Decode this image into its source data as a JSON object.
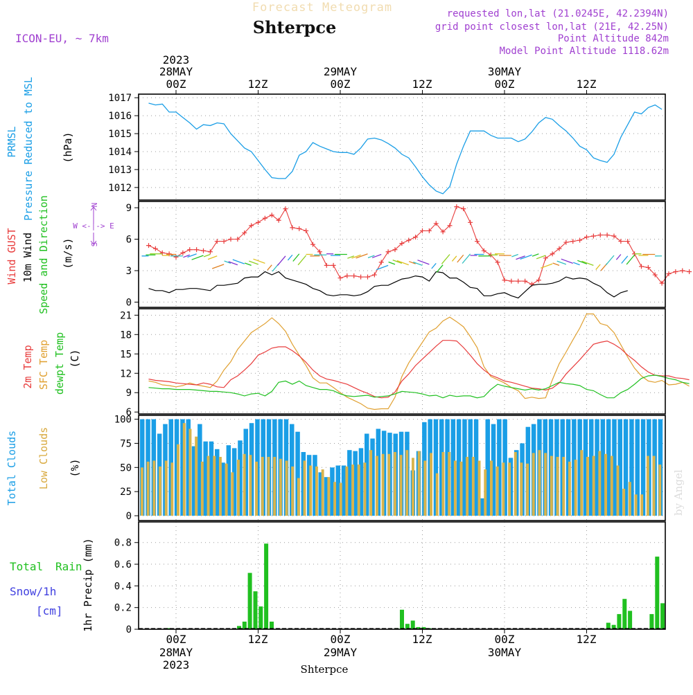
{
  "header": {
    "title": "Shterpce",
    "faded_title": "Forecast Meteogram",
    "model": "ICON-EU, ~ 7km",
    "requested": "requested lon,lat (21.0245E, 42.2394N)",
    "gridpoint": "grid point closest lon,lat (21E, 42.25N)",
    "point_alt": "Point Altitude 842m",
    "model_alt": "Model Point Altitude 1118.62m",
    "watermark": "by Angel",
    "bottom_label": "Shterpce"
  },
  "colors": {
    "pressure": "#1a9ee6",
    "gust": "#e83c3c",
    "wind": "#000000",
    "temp2m": "#e83c3c",
    "sfc": "#e0a030",
    "dewpt": "#20c020",
    "total_clouds": "#1a9ee6",
    "low_clouds": "#d8b44c",
    "rain": "#20c020",
    "snow": "#4040e0",
    "purple": "#a040d0"
  },
  "time_axis": {
    "top_year": "2023",
    "top_dates": [
      "28MAY",
      "29MAY",
      "30MAY"
    ],
    "hours": [
      "00Z",
      "12Z",
      "00Z",
      "12Z",
      "00Z",
      "12Z"
    ],
    "bottom_dates": [
      "28MAY",
      "29MAY",
      "30MAY"
    ],
    "bottom_year": "2023"
  },
  "panel_labels": {
    "pressure": [
      "PRMSL",
      "Pressure Reduced to MSL",
      "(hPa)"
    ],
    "wind": [
      "Wind GUST",
      "10m Wind",
      "Speed and Direction",
      "(m/s)"
    ],
    "compass": [
      "N",
      "W <-|-> E",
      "S"
    ],
    "temp": [
      "2m Temp",
      "SFC Temp",
      "dewpt Temp",
      "(C)"
    ],
    "clouds": [
      "Total Clouds",
      "Low Clouds",
      "(%)"
    ],
    "precip": [
      "Total",
      "Rain",
      "Snow/1h",
      "[cm]",
      "1hr Precip (mm)"
    ]
  },
  "chart_data": [
    {
      "type": "line",
      "name": "PRMSL Pressure Reduced to MSL",
      "ylabel": "(hPa)",
      "ylim": [
        1011.3,
        1017.2
      ],
      "yticks": [
        1012,
        1013,
        1014,
        1015,
        1016,
        1017
      ],
      "x_hours_from_00Z_28MAY": {
        "start": -4,
        "step": 1
      },
      "series": [
        {
          "name": "PRMSL",
          "values": [
            1016.7,
            1016.6,
            1016.65,
            1016.2,
            1016.2,
            1015.9,
            1015.6,
            1015.25,
            1015.5,
            1015.45,
            1015.6,
            1015.55,
            1015.0,
            1014.6,
            1014.2,
            1014.0,
            1013.5,
            1013.0,
            1012.55,
            1012.5,
            1012.5,
            1012.9,
            1013.8,
            1014.0,
            1014.5,
            1014.3,
            1014.15,
            1014.0,
            1013.95,
            1013.95,
            1013.85,
            1014.2,
            1014.7,
            1014.75,
            1014.65,
            1014.45,
            1014.2,
            1013.85,
            1013.65,
            1013.15,
            1012.6,
            1012.15,
            1011.8,
            1011.65,
            1012.05,
            1013.3,
            1014.3,
            1015.15,
            1015.15,
            1015.15,
            1014.9,
            1014.75,
            1014.75,
            1014.75,
            1014.55,
            1014.7,
            1015.1,
            1015.6,
            1015.9,
            1015.8,
            1015.45,
            1015.15,
            1014.75,
            1014.3,
            1014.1,
            1013.65,
            1013.5,
            1013.4,
            1013.85,
            1014.8,
            1015.5,
            1016.2,
            1016.1,
            1016.45,
            1016.6,
            1016.35
          ]
        }
      ]
    },
    {
      "type": "line",
      "name": "Wind GUST / 10m Wind Speed and Direction",
      "ylabel": "(m/s)",
      "ylim": [
        -0.5,
        9.6
      ],
      "yticks": [
        0,
        3,
        6,
        9
      ],
      "x_hours_from_00Z_28MAY": {
        "start": -4,
        "step": 1
      },
      "series": [
        {
          "name": "Wind GUST",
          "values": [
            5.4,
            5.1,
            4.7,
            4.6,
            4.3,
            4.7,
            5.0,
            5.0,
            4.9,
            4.8,
            5.8,
            5.8,
            6.0,
            6.0,
            6.6,
            7.3,
            7.6,
            8.0,
            8.3,
            7.8,
            8.9,
            7.1,
            7.0,
            6.8,
            5.5,
            4.8,
            3.5,
            3.5,
            2.3,
            2.5,
            2.5,
            2.4,
            2.4,
            2.6,
            3.8,
            4.8,
            5.0,
            5.6,
            5.9,
            6.2,
            6.8,
            6.8,
            7.5,
            6.7,
            7.3,
            9.1,
            8.9,
            7.6,
            5.8,
            4.9,
            4.5,
            3.8,
            2.1,
            2.0,
            2.0,
            2.0,
            1.7,
            2.1,
            4.2,
            4.6,
            5.1,
            5.7,
            5.8,
            5.9,
            6.2,
            6.3,
            6.4,
            6.4,
            6.3,
            5.8,
            5.8,
            4.6,
            3.4,
            3.3,
            2.6,
            1.8,
            2.7,
            2.9,
            3.0,
            2.9
          ]
        },
        {
          "name": "10m Wind",
          "values": [
            1.3,
            1.1,
            1.1,
            0.9,
            1.2,
            1.2,
            1.3,
            1.3,
            1.2,
            1.1,
            1.6,
            1.6,
            1.7,
            1.8,
            2.3,
            2.4,
            2.4,
            2.9,
            2.6,
            2.9,
            2.3,
            2.1,
            1.9,
            1.7,
            1.3,
            1.1,
            0.7,
            0.6,
            0.7,
            0.7,
            0.6,
            0.7,
            1.0,
            1.5,
            1.6,
            1.6,
            1.9,
            2.2,
            2.3,
            2.5,
            2.4,
            2.0,
            2.9,
            2.8,
            2.3,
            2.3,
            1.9,
            1.4,
            1.3,
            0.6,
            0.6,
            0.8,
            0.9,
            0.6,
            0.4,
            1.0,
            1.6,
            1.7,
            1.7,
            1.8,
            2.0,
            2.4,
            2.2,
            2.3,
            2.2,
            1.8,
            1.5,
            0.9,
            0.5,
            0.9,
            1.1
          ]
        }
      ]
    },
    {
      "type": "line",
      "name": "2m Temp / SFC Temp / dewpt Temp",
      "ylabel": "(C)",
      "ylim": [
        5.7,
        22
      ],
      "yticks": [
        6,
        9,
        12,
        15,
        18,
        21
      ],
      "x_hours_from_00Z_28MAY": {
        "start": -4,
        "step": 1
      },
      "series": [
        {
          "name": "2m Temp",
          "values": [
            11.1,
            10.9,
            10.8,
            10.7,
            10.5,
            10.4,
            10.3,
            10.2,
            10.5,
            10.3,
            9.9,
            9.8,
            11.0,
            11.6,
            12.5,
            13.5,
            14.8,
            15.3,
            15.9,
            16.1,
            16.1,
            15.5,
            14.7,
            13.7,
            12.5,
            11.6,
            11.1,
            10.9,
            10.6,
            10.3,
            9.8,
            9.3,
            8.9,
            8.4,
            8.2,
            8.3,
            9.1,
            10.8,
            11.9,
            13.2,
            14.2,
            15.2,
            16.2,
            17.1,
            17.1,
            17.0,
            16.0,
            14.8,
            13.5,
            12.5,
            11.7,
            11.3,
            10.8,
            10.6,
            10.3,
            10.0,
            9.7,
            9.6,
            9.4,
            9.7,
            10.5,
            11.9,
            13.0,
            14.1,
            15.3,
            16.5,
            16.8,
            17.0,
            16.5,
            15.8,
            14.8,
            14.0,
            13.0,
            12.2,
            11.7,
            11.6,
            11.6,
            11.3,
            11.2,
            11.0
          ]
        },
        {
          "name": "SFC Temp",
          "values": [
            10.8,
            10.6,
            10.2,
            10.1,
            9.9,
            10.1,
            10.5,
            10.2,
            10.0,
            9.8,
            10.8,
            12.5,
            13.8,
            15.7,
            17.0,
            18.3,
            19.0,
            19.7,
            20.6,
            19.7,
            18.5,
            16.5,
            14.8,
            13.2,
            11.3,
            10.5,
            10.5,
            9.8,
            9.0,
            8.3,
            7.8,
            7.3,
            6.6,
            6.4,
            6.5,
            6.5,
            8.3,
            11.5,
            13.6,
            15.2,
            16.8,
            18.4,
            19.0,
            20.1,
            20.7,
            20.0,
            19.2,
            17.7,
            16.0,
            13.0,
            11.5,
            11.0,
            10.5,
            9.8,
            9.3,
            8.1,
            8.3,
            8.1,
            8.2,
            11.0,
            13.5,
            15.3,
            17.2,
            19.0,
            21.2,
            21.2,
            19.7,
            19.4,
            18.3,
            16.4,
            14.5,
            12.8,
            11.6,
            10.8,
            10.6,
            10.9,
            10.2,
            10.3,
            10.6,
            10.0
          ]
        },
        {
          "name": "dewpt Temp",
          "values": [
            9.8,
            9.7,
            9.6,
            9.6,
            9.5,
            9.5,
            9.5,
            9.4,
            9.3,
            9.2,
            9.2,
            9.1,
            9.0,
            8.8,
            8.5,
            8.8,
            8.9,
            8.5,
            9.2,
            10.6,
            10.8,
            10.3,
            10.8,
            10.1,
            9.8,
            9.5,
            9.5,
            9.3,
            8.8,
            8.5,
            8.4,
            8.5,
            8.6,
            8.3,
            8.4,
            8.5,
            8.8,
            9.2,
            9.1,
            9.0,
            8.8,
            8.5,
            8.6,
            8.2,
            8.6,
            8.4,
            8.5,
            8.5,
            8.2,
            8.4,
            9.5,
            10.3,
            10.0,
            9.8,
            9.6,
            9.4,
            9.6,
            9.4,
            9.6,
            10.1,
            10.6,
            10.4,
            10.3,
            10.1,
            9.5,
            9.3,
            8.7,
            8.2,
            8.2,
            9.0,
            9.5,
            10.3,
            11.2,
            11.6,
            11.7,
            11.5,
            11.2,
            11.0,
            10.6,
            10.4
          ]
        }
      ]
    },
    {
      "type": "bar",
      "name": "Total Clouds / Low Clouds",
      "ylabel": "(%)",
      "ylim": [
        -5,
        104
      ],
      "yticks": [
        0,
        25,
        50,
        75,
        100
      ],
      "x_hours_from_00Z_28MAY": {
        "start": -4,
        "step": 1
      },
      "series": [
        {
          "name": "Total Clouds",
          "values": [
            100,
            100,
            100,
            85,
            95,
            100,
            100,
            100,
            100,
            72,
            95,
            77,
            77,
            69,
            55,
            73,
            70,
            78,
            90,
            96,
            100,
            100,
            100,
            100,
            100,
            100,
            95,
            87,
            66,
            63,
            63,
            45,
            40,
            50,
            52,
            52,
            68,
            67,
            70,
            85,
            80,
            90,
            88,
            86,
            85,
            87,
            87,
            47,
            67,
            97,
            100,
            100,
            100,
            100,
            100,
            100,
            100,
            100,
            100,
            18,
            100,
            95,
            100,
            100,
            60,
            68,
            75,
            92,
            95,
            100,
            100,
            100,
            100,
            100,
            100,
            100,
            100,
            100,
            100,
            100,
            100,
            100,
            100,
            100,
            100,
            100,
            100,
            100,
            100,
            100,
            100
          ]
        },
        {
          "name": "Low Clouds",
          "values": [
            50,
            56,
            57,
            51,
            57,
            55,
            74,
            96,
            90,
            82,
            56,
            62,
            62,
            61,
            54,
            45,
            58,
            64,
            63,
            56,
            61,
            61,
            61,
            59,
            57,
            51,
            39,
            57,
            52,
            51,
            48,
            40,
            35,
            34,
            51,
            53,
            53,
            55,
            68,
            62,
            64,
            64,
            66,
            63,
            68,
            60,
            67,
            57,
            65,
            44,
            66,
            66,
            57,
            56,
            61,
            61,
            57,
            48,
            57,
            51,
            55,
            55,
            66,
            55,
            54,
            65,
            68,
            65,
            62,
            61,
            61,
            56,
            58,
            68,
            61,
            62,
            67,
            64,
            62,
            52,
            28,
            35,
            22,
            22,
            62,
            62,
            53
          ]
        }
      ]
    },
    {
      "type": "bar",
      "name": "1hr Precip",
      "ylabel": "1hr Precip (mm)",
      "ylim": [
        0,
        0.99
      ],
      "yticks": [
        0,
        0.2,
        0.4,
        0.6,
        0.8
      ],
      "x_hours_from_00Z_28MAY": {
        "start": -4,
        "step": 1
      },
      "series": [
        {
          "name": "Total Rain",
          "values": [
            0,
            0,
            0,
            0,
            0,
            0.01,
            0,
            0,
            0,
            0,
            0,
            0,
            0,
            0,
            0,
            0,
            0,
            0,
            0.03,
            0.07,
            0.52,
            0.35,
            0.21,
            0.79,
            0.07,
            0,
            0,
            0,
            0,
            0,
            0,
            0,
            0,
            0,
            0,
            0,
            0,
            0,
            0,
            0,
            0,
            0,
            0,
            0,
            0,
            0,
            0,
            0.01,
            0.18,
            0.05,
            0.08,
            0.02,
            0.02,
            0.01,
            0,
            0,
            0,
            0,
            0,
            0,
            0,
            0,
            0,
            0,
            0,
            0,
            0,
            0,
            0,
            0,
            0,
            0,
            0,
            0,
            0,
            0,
            0,
            0,
            0,
            0,
            0,
            0,
            0,
            0,
            0,
            0,
            0.06,
            0.04,
            0.14,
            0.28,
            0.17,
            0,
            0,
            0,
            0.14,
            0.67,
            0.24
          ]
        }
      ]
    }
  ]
}
